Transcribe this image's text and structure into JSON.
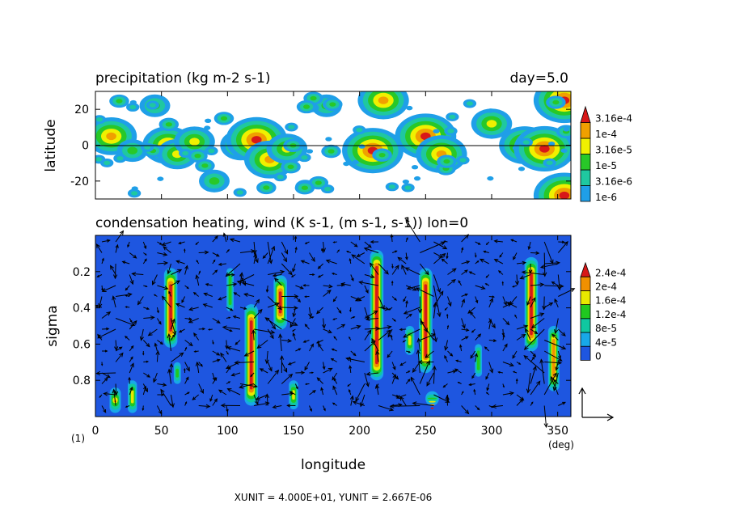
{
  "colors": {
    "precip_levels": [
      "#ffffff",
      "#1f9fe8",
      "#1fc8a0",
      "#28c828",
      "#f0f000",
      "#f0a000",
      "#d81818"
    ],
    "heat_levels": [
      "#ffffff",
      "#1e56e0",
      "#18a8e8",
      "#10c8a0",
      "#20c820",
      "#e8e800",
      "#f09000",
      "#d81818"
    ]
  },
  "chart_data": [
    {
      "type": "heatmap",
      "title": "precipitation (kg m-2 s-1)",
      "annotation": "day=5.0",
      "ylabel": "latitude",
      "ylim": [
        -30,
        30
      ],
      "xlim": [
        0,
        360
      ],
      "y_ticks": [
        "20",
        "0",
        "-20"
      ],
      "colorbar": {
        "labels": [
          "3.16e-4",
          "1e-4",
          "3.16e-5",
          "1e-5",
          "3.16e-6",
          "1e-6"
        ],
        "levels": [
          1e-06,
          3.16e-06,
          1e-05,
          3.16e-05,
          0.0001,
          0.000316
        ]
      },
      "cells": [
        {
          "lon": 12,
          "lat": 5,
          "level": 5
        },
        {
          "lon": 28,
          "lat": -3,
          "level": 3
        },
        {
          "lon": 45,
          "lat": 22,
          "level": 3
        },
        {
          "lon": 55,
          "lat": 0,
          "level": 5
        },
        {
          "lon": 62,
          "lat": -5,
          "level": 4
        },
        {
          "lon": 75,
          "lat": 2,
          "level": 4
        },
        {
          "lon": 110,
          "lat": 0,
          "level": 4
        },
        {
          "lon": 122,
          "lat": 3,
          "level": 6
        },
        {
          "lon": 132,
          "lat": -8,
          "level": 5
        },
        {
          "lon": 145,
          "lat": -2,
          "level": 4
        },
        {
          "lon": 210,
          "lat": -3,
          "level": 6
        },
        {
          "lon": 218,
          "lat": 25,
          "level": 5
        },
        {
          "lon": 250,
          "lat": 5,
          "level": 6
        },
        {
          "lon": 262,
          "lat": -5,
          "level": 5
        },
        {
          "lon": 300,
          "lat": 12,
          "level": 4
        },
        {
          "lon": 325,
          "lat": 0,
          "level": 5
        },
        {
          "lon": 340,
          "lat": -2,
          "level": 6
        },
        {
          "lon": 355,
          "lat": 25,
          "level": 6
        },
        {
          "lon": 355,
          "lat": -28,
          "level": 6
        },
        {
          "lon": 175,
          "lat": 22,
          "level": 3
        },
        {
          "lon": 90,
          "lat": -20,
          "level": 3
        }
      ]
    },
    {
      "type": "heatmap",
      "title": "condensation heating, wind (K s-1, (m s-1, s-1)) lon=0",
      "xlabel": "longitude",
      "ylabel": "sigma",
      "xlim": [
        0,
        360
      ],
      "ylim": [
        1,
        0
      ],
      "x_ticks": [
        "0",
        "50",
        "100",
        "150",
        "200",
        "250",
        "300",
        "350"
      ],
      "y_ticks": [
        "0.2",
        "0.4",
        "0.6",
        "0.8"
      ],
      "x_unit": "(deg)",
      "corner_label": "(1)",
      "colorbar": {
        "labels": [
          "2.4e-4",
          "2e-4",
          "1.6e-4",
          "1.2e-4",
          "8e-5",
          "4e-5",
          "0"
        ],
        "levels": [
          0,
          4e-05,
          8e-05,
          0.00012,
          0.00016,
          0.0002,
          0.00024
        ]
      },
      "columns": [
        {
          "lon": 15,
          "sigma_top": 0.84,
          "sigma_bottom": 0.98,
          "level": 6
        },
        {
          "lon": 28,
          "sigma_top": 0.8,
          "sigma_bottom": 0.98,
          "level": 5
        },
        {
          "lon": 57,
          "sigma_top": 0.18,
          "sigma_bottom": 0.62,
          "level": 7
        },
        {
          "lon": 62,
          "sigma_top": 0.7,
          "sigma_bottom": 0.82,
          "level": 4
        },
        {
          "lon": 102,
          "sigma_top": 0.18,
          "sigma_bottom": 0.42,
          "level": 4
        },
        {
          "lon": 118,
          "sigma_top": 0.38,
          "sigma_bottom": 0.94,
          "level": 7
        },
        {
          "lon": 140,
          "sigma_top": 0.22,
          "sigma_bottom": 0.52,
          "level": 7
        },
        {
          "lon": 150,
          "sigma_top": 0.8,
          "sigma_bottom": 0.96,
          "level": 5
        },
        {
          "lon": 213,
          "sigma_top": 0.08,
          "sigma_bottom": 0.8,
          "level": 7
        },
        {
          "lon": 238,
          "sigma_top": 0.5,
          "sigma_bottom": 0.66,
          "level": 5
        },
        {
          "lon": 250,
          "sigma_top": 0.18,
          "sigma_bottom": 0.76,
          "level": 7
        },
        {
          "lon": 255,
          "sigma_top": 0.86,
          "sigma_bottom": 0.94,
          "level": 7
        },
        {
          "lon": 290,
          "sigma_top": 0.6,
          "sigma_bottom": 0.78,
          "level": 4
        },
        {
          "lon": 330,
          "sigma_top": 0.12,
          "sigma_bottom": 0.64,
          "level": 7
        },
        {
          "lon": 347,
          "sigma_top": 0.5,
          "sigma_bottom": 0.86,
          "level": 6
        }
      ]
    }
  ],
  "footer": {
    "units_text": "XUNIT = 4.000E+01, YUNIT = 2.667E-06"
  }
}
